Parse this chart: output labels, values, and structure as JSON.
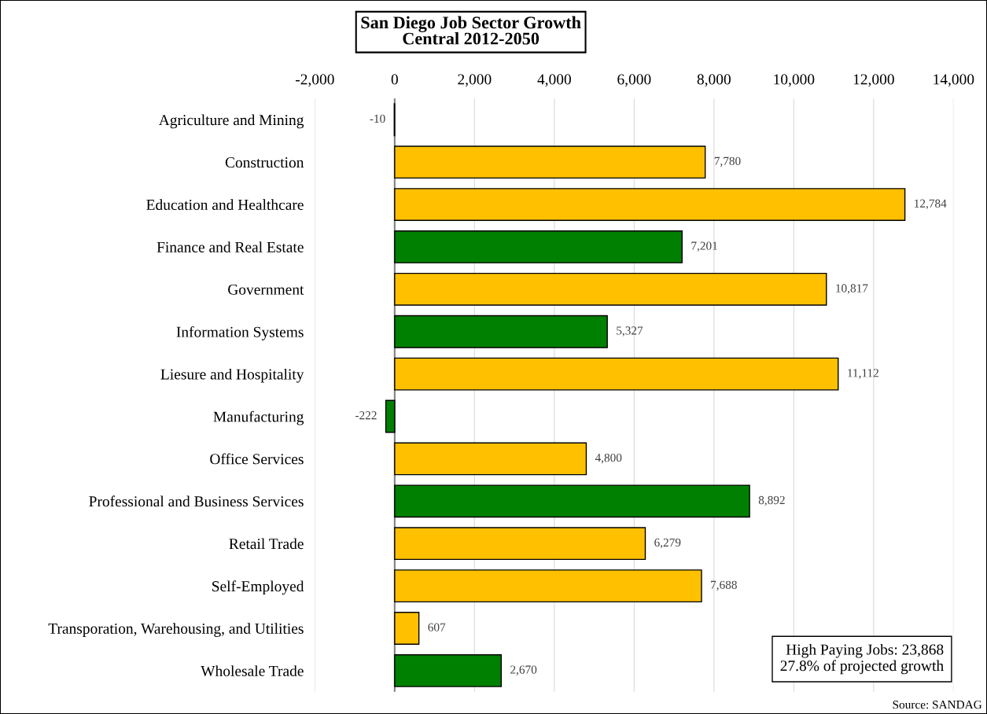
{
  "chart_data": {
    "type": "bar",
    "orientation": "horizontal",
    "title": "San Diego Job Sector Growth",
    "subtitle": "Central 2012-2050",
    "categories": [
      "Agriculture and Mining",
      "Construction",
      "Education and Healthcare",
      "Finance and Real Estate",
      "Government",
      "Information Systems",
      "Liesure and Hospitality",
      "Manufacturing",
      "Office Services",
      "Professional and Business Services",
      "Retail Trade",
      "Self-Employed",
      "Transporation, Warehousing, and Utilities",
      "Wholesale Trade"
    ],
    "values": [
      -10,
      7780,
      12784,
      7201,
      10817,
      5327,
      11112,
      -222,
      4800,
      8892,
      6279,
      7688,
      607,
      2670
    ],
    "colors": [
      "#008000",
      "#ffc000",
      "#ffc000",
      "#008000",
      "#ffc000",
      "#008000",
      "#ffc000",
      "#008000",
      "#ffc000",
      "#008000",
      "#ffc000",
      "#ffc000",
      "#ffc000",
      "#008000"
    ],
    "xlim": [
      -2000,
      14000
    ],
    "xticks": [
      {
        "value": -2000,
        "label": "-2,000"
      },
      0,
      {
        "value": 2000,
        "label": "2,000"
      },
      {
        "value": 4000,
        "label": "4,000"
      },
      {
        "value": 6000,
        "label": "6,000"
      },
      {
        "value": 8000,
        "label": "8,000"
      },
      {
        "value": 10000,
        "label": "10,000"
      },
      {
        "value": 12000,
        "label": "12,000"
      },
      {
        "value": 14000,
        "label": "14,000"
      }
    ],
    "value_labels": [
      "-10",
      "7,780",
      "12,784",
      "7,201",
      "10,817",
      "5,327",
      "11,112",
      "-222",
      "4,800",
      "8,892",
      "6,279",
      "7,688",
      "607",
      "2,670"
    ],
    "grid": "x",
    "legend": false,
    "annotations": [
      "High Paying Jobs: 23,868\n27.8% of projected growth",
      "Source: SANDAG"
    ]
  }
}
